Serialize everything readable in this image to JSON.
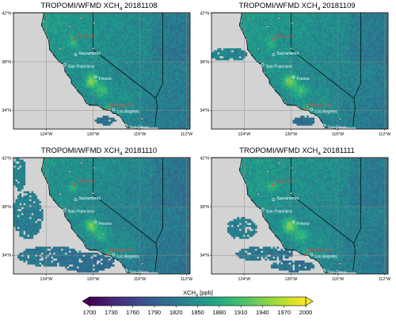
{
  "panels": [
    {
      "title_main": "TROPOMI/WFMD XCH",
      "title_sub": "4",
      "title_date": "20181108",
      "coverage": "land-only"
    },
    {
      "title_main": "TROPOMI/WFMD XCH",
      "title_sub": "4",
      "title_date": "20181109",
      "coverage": "land-plus-north-coast"
    },
    {
      "title_main": "TROPOMI/WFMD XCH",
      "title_sub": "4",
      "title_date": "20181110",
      "coverage": "extensive-ocean"
    },
    {
      "title_main": "TROPOMI/WFMD XCH",
      "title_sub": "4",
      "title_date": "20181111",
      "coverage": "partial-ocean"
    }
  ],
  "map": {
    "lon_ticks": [
      "124°W",
      "120°W",
      "116°W",
      "112°W"
    ],
    "lat_ticks": [
      "42°N",
      "38°N",
      "34°N"
    ],
    "cities": [
      "Sacramento",
      "San Francisco",
      "Fresno",
      "Los Angeles",
      "San Diego"
    ],
    "fires": [
      "Camp Fire",
      "Woolsey Fire"
    ],
    "ocean_color": "#d3d3d3"
  },
  "colorbar": {
    "title_main": "XCH",
    "title_sub": "4",
    "title_unit": " [ppb]",
    "ticks": [
      "1700",
      "1730",
      "1760",
      "1790",
      "1820",
      "1850",
      "1880",
      "1910",
      "1940",
      "1970",
      "2000"
    ],
    "colormap": "viridis"
  }
}
